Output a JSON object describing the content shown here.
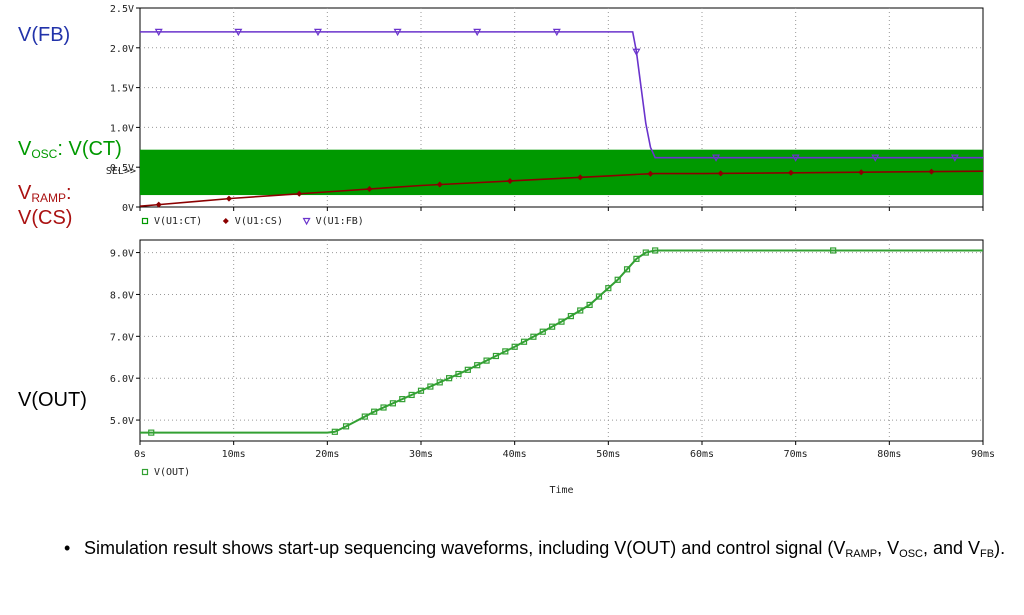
{
  "colors": {
    "osc": "#009900",
    "cs": "#8b0000",
    "fb": "#6a33cc",
    "out": "#33a033",
    "vfb_label": "#2233aa",
    "vosc_label": "#009900",
    "vramp_label": "#aa1111",
    "sel_marker": "#ff3333"
  },
  "labels": {
    "vfb": "V(FB)",
    "vosc_main": "V",
    "vosc_sub": "OSC",
    "vosc_tail": ": V(CT)",
    "vramp_main": "V",
    "vramp_sub": "RAMP",
    "vramp_colon": ":",
    "vcs": "V(CS)",
    "vout": "V(OUT)"
  },
  "caption": {
    "bullet": "•",
    "t1": "Simulation result shows start-up sequencing waveforms, including V(OUT) and control signal (V",
    "s1": "RAMP",
    "t2": ", V",
    "s2": "OSC",
    "t3": ", and V",
    "s3": "FB",
    "t4": ")."
  },
  "chart_data": [
    {
      "type": "line",
      "x_unit": "ms",
      "xlim": [
        0,
        90
      ],
      "ylim": [
        0,
        2.5
      ],
      "y_ticks": [
        "0V",
        "0.5V",
        "1.0V",
        "1.5V",
        "2.0V",
        "2.5V"
      ],
      "y_tick_values": [
        0,
        0.5,
        1.0,
        1.5,
        2.0,
        2.5
      ],
      "sel_label": "SEL>>",
      "grid": "dotted",
      "legend": [
        "V(U1:CT)",
        "V(U1:CS)",
        "V(U1:FB)"
      ],
      "series": [
        {
          "name": "V(U1:CT)",
          "color": "#009900",
          "band": [
            0.15,
            0.72
          ],
          "x": [
            0,
            90
          ]
        },
        {
          "name": "V(U1:CS)",
          "color": "#8b0000",
          "x": [
            0,
            2,
            6,
            10,
            15,
            20,
            25,
            30,
            35,
            40,
            45,
            50,
            53,
            55,
            60,
            70,
            80,
            90
          ],
          "y": [
            0.01,
            0.03,
            0.07,
            0.11,
            0.15,
            0.19,
            0.23,
            0.27,
            0.3,
            0.33,
            0.36,
            0.39,
            0.41,
            0.42,
            0.42,
            0.43,
            0.44,
            0.45
          ]
        },
        {
          "name": "V(U1:FB)",
          "color": "#6a33cc",
          "x": [
            0,
            52.6,
            53.0,
            53.5,
            54.0,
            54.5,
            55.0,
            90
          ],
          "y": [
            2.2,
            2.2,
            1.95,
            1.5,
            1.05,
            0.75,
            0.62,
            0.62
          ]
        }
      ]
    },
    {
      "type": "line",
      "x_unit": "ms",
      "xlabel": "Time",
      "xlim": [
        0,
        90
      ],
      "ylim": [
        4.5,
        9.3
      ],
      "x_ticks": [
        "0s",
        "10ms",
        "20ms",
        "30ms",
        "40ms",
        "50ms",
        "60ms",
        "70ms",
        "80ms",
        "90ms"
      ],
      "x_tick_values": [
        0,
        10,
        20,
        30,
        40,
        50,
        60,
        70,
        80,
        90
      ],
      "y_ticks": [
        "5.0V",
        "6.0V",
        "7.0V",
        "8.0V",
        "9.0V"
      ],
      "y_tick_values": [
        5,
        6,
        7,
        8,
        9
      ],
      "grid": "dotted",
      "legend": [
        "V(OUT)"
      ],
      "series": [
        {
          "name": "V(OUT)",
          "color": "#33a033",
          "x": [
            0,
            20,
            20.8,
            22,
            25,
            30,
            35,
            40,
            45,
            48,
            50,
            51,
            52,
            53,
            54,
            55,
            60,
            70,
            80,
            90
          ],
          "y": [
            4.7,
            4.7,
            4.72,
            4.85,
            5.2,
            5.7,
            6.2,
            6.75,
            7.35,
            7.75,
            8.15,
            8.35,
            8.6,
            8.85,
            9.0,
            9.05,
            9.05,
            9.05,
            9.05,
            9.05
          ]
        }
      ]
    }
  ]
}
